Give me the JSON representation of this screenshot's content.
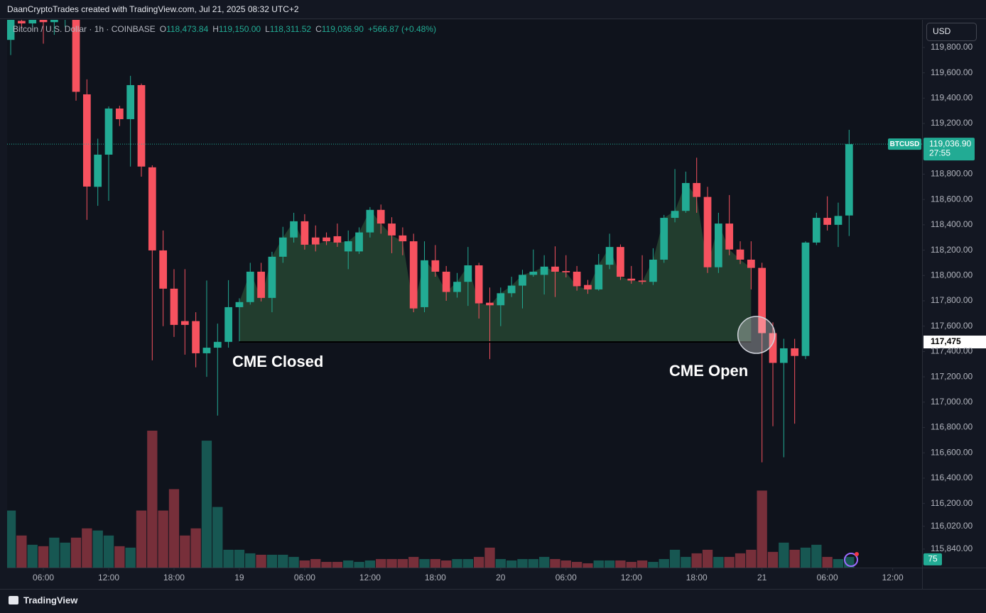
{
  "header": "DaanCryptoTrades created with TradingView.com, Jul 21, 2025 08:32 UTC+2",
  "footer": "TradingView",
  "chart_data": {
    "type": "candlestick",
    "symbol": "Bitcoin / U.S. Dollar · 1h · COINBASE",
    "ohlc_legend": [
      {
        "key": "O",
        "value": "118,473.84"
      },
      {
        "key": "H",
        "value": "119,150.00"
      },
      {
        "key": "L",
        "value": "118,311.52"
      },
      {
        "key": "C",
        "value": "119,036.90"
      }
    ],
    "change": "+566.87 (+0.48%)",
    "currency": "USD",
    "ticker": "BTCUSD",
    "countdown": "27:55",
    "last_price": {
      "value": 119036.9,
      "label": "119,036.90"
    },
    "gap_level": {
      "value": 117475,
      "label": "117,475"
    },
    "annotations": [
      "CME Closed",
      "CME Open"
    ],
    "up_color": "#22ab94",
    "down_color": "#f7525f",
    "grid": false,
    "xlim": [
      -0.33,
      83.7
    ],
    "xticks": [
      {
        "value": 3,
        "label": "06:00"
      },
      {
        "value": 9,
        "label": "12:00"
      },
      {
        "value": 15,
        "label": "18:00"
      },
      {
        "value": 21,
        "label": "19"
      },
      {
        "value": 27,
        "label": "06:00"
      },
      {
        "value": 33,
        "label": "12:00"
      },
      {
        "value": 39,
        "label": "18:00"
      },
      {
        "value": 45,
        "label": "20"
      },
      {
        "value": 51,
        "label": "06:00"
      },
      {
        "value": 57,
        "label": "12:00"
      },
      {
        "value": 63,
        "label": "18:00"
      },
      {
        "value": 69,
        "label": "21"
      },
      {
        "value": 75,
        "label": "06:00"
      },
      {
        "value": 81,
        "label": "12:00"
      }
    ],
    "ylim": [
      115694,
      120018
    ],
    "yticks": [
      {
        "value": 119800,
        "label": "119,800.00"
      },
      {
        "value": 119600,
        "label": "119,600.00"
      },
      {
        "value": 119400,
        "label": "119,400.00"
      },
      {
        "value": 119200,
        "label": "119,200.00"
      },
      {
        "value": 118800,
        "label": "118,800.00"
      },
      {
        "value": 118600,
        "label": "118,600.00"
      },
      {
        "value": 118400,
        "label": "118,400.00"
      },
      {
        "value": 118200,
        "label": "118,200.00"
      },
      {
        "value": 118000,
        "label": "118,000.00"
      },
      {
        "value": 117800,
        "label": "117,800.00"
      },
      {
        "value": 117600,
        "label": "117,600.00"
      },
      {
        "value": 117400,
        "label": "117,400.00"
      },
      {
        "value": 117200,
        "label": "117,200.00"
      },
      {
        "value": 117000,
        "label": "117,000.00"
      },
      {
        "value": 116800,
        "label": "116,800.00"
      },
      {
        "value": 116600,
        "label": "116,600.00"
      },
      {
        "value": 116400,
        "label": "116,400.00"
      },
      {
        "value": 116200,
        "label": "116,200.00"
      },
      {
        "value": 116020,
        "label": "116,020.00"
      },
      {
        "value": 115840,
        "label": "115,840.00"
      }
    ],
    "open": [
      119860,
      120010,
      119990,
      120030,
      120000,
      120020,
      120060,
      119430,
      118700,
      118954,
      119318,
      119234,
      119503,
      118854,
      118198,
      117896,
      117640,
      117640,
      117386,
      117430,
      117476,
      117750,
      117790,
      118030,
      117823,
      118148,
      118300,
      118428,
      118300,
      118300,
      118310,
      118190,
      118190,
      118340,
      118518,
      118410,
      118316,
      118270,
      117750,
      118120,
      118030,
      117870,
      117950,
      118080,
      117785,
      117765,
      117860,
      117920,
      118005,
      118005,
      118070,
      118035,
      118030,
      117925,
      117890,
      118085,
      118225,
      117975,
      117960,
      117950,
      118125,
      118455,
      118510,
      118730,
      118620,
      118065,
      118410,
      118205,
      118125,
      118060,
      117545,
      117310,
      117425,
      117365,
      118260,
      118455,
      118400,
      118473.84
    ],
    "high": [
      120050,
      120040,
      120060,
      120070,
      120040,
      120080,
      120090,
      119548,
      119080,
      119335,
      119340,
      119576,
      119515,
      118870,
      118355,
      118050,
      118050,
      117710,
      117960,
      117620,
      117963,
      117820,
      118100,
      118100,
      118187,
      118384,
      118495,
      118484,
      118395,
      118340,
      118410,
      118355,
      118380,
      118540,
      118560,
      118460,
      118380,
      118330,
      118270,
      118240,
      118075,
      118020,
      118225,
      118100,
      117905,
      117905,
      117990,
      118045,
      118205,
      118160,
      118230,
      118160,
      118075,
      117965,
      118170,
      118330,
      118245,
      118075,
      118160,
      118215,
      118478,
      118840,
      118820,
      118930,
      118700,
      118495,
      118635,
      118270,
      118270,
      118100,
      117630,
      117500,
      117500,
      118270,
      118495,
      118625,
      118575,
      119150
    ],
    "low": [
      119740,
      119950,
      119960,
      119830,
      119900,
      119960,
      119380,
      118439,
      118550,
      118590,
      119180,
      118860,
      118780,
      117330,
      117600,
      117515,
      117375,
      117275,
      117200,
      116894,
      117430,
      117480,
      117770,
      117795,
      117710,
      118100,
      118260,
      118204,
      118190,
      118240,
      118226,
      118050,
      118170,
      118300,
      118330,
      118176,
      118160,
      117710,
      117710,
      117990,
      117800,
      117825,
      117760,
      117660,
      117340,
      117600,
      117830,
      117740,
      117990,
      117850,
      117830,
      117985,
      117880,
      117855,
      117880,
      118050,
      117965,
      117935,
      117930,
      117925,
      118100,
      118420,
      118495,
      118495,
      118020,
      118020,
      118160,
      118090,
      117890,
      116525,
      116810,
      116565,
      116830,
      117340,
      118240,
      118355,
      118225,
      118311.52
    ],
    "close": [
      120020,
      119990,
      120030,
      120000,
      120020,
      120050,
      119450,
      118702,
      118954,
      119318,
      119234,
      119503,
      118860,
      118198,
      117896,
      117610,
      117610,
      117386,
      117430,
      117476,
      117750,
      117790,
      118030,
      117823,
      118148,
      118300,
      118428,
      118243,
      118245,
      118270,
      118260,
      118270,
      118340,
      118518,
      118410,
      118316,
      118270,
      117740,
      118120,
      118030,
      117870,
      117950,
      118080,
      117780,
      117765,
      117860,
      117920,
      118005,
      118030,
      118070,
      118030,
      118025,
      117915,
      117890,
      118085,
      118225,
      117990,
      117960,
      117950,
      118125,
      118455,
      118510,
      118730,
      118620,
      118065,
      118410,
      118205,
      118125,
      118060,
      117545,
      117310,
      117425,
      117365,
      118260,
      118455,
      118400,
      118470,
      119036.9
    ],
    "volume": [
      400,
      225,
      160,
      150,
      210,
      175,
      210,
      275,
      260,
      225,
      150,
      140,
      400,
      960,
      400,
      550,
      225,
      275,
      890,
      425,
      125,
      125,
      100,
      90,
      90,
      90,
      75,
      50,
      60,
      40,
      40,
      50,
      40,
      50,
      60,
      60,
      60,
      75,
      60,
      60,
      50,
      60,
      60,
      75,
      140,
      60,
      50,
      60,
      60,
      75,
      60,
      50,
      40,
      30,
      50,
      50,
      50,
      40,
      50,
      40,
      60,
      125,
      75,
      100,
      125,
      75,
      75,
      100,
      125,
      540,
      110,
      175,
      125,
      140,
      160,
      75,
      60,
      75
    ]
  }
}
